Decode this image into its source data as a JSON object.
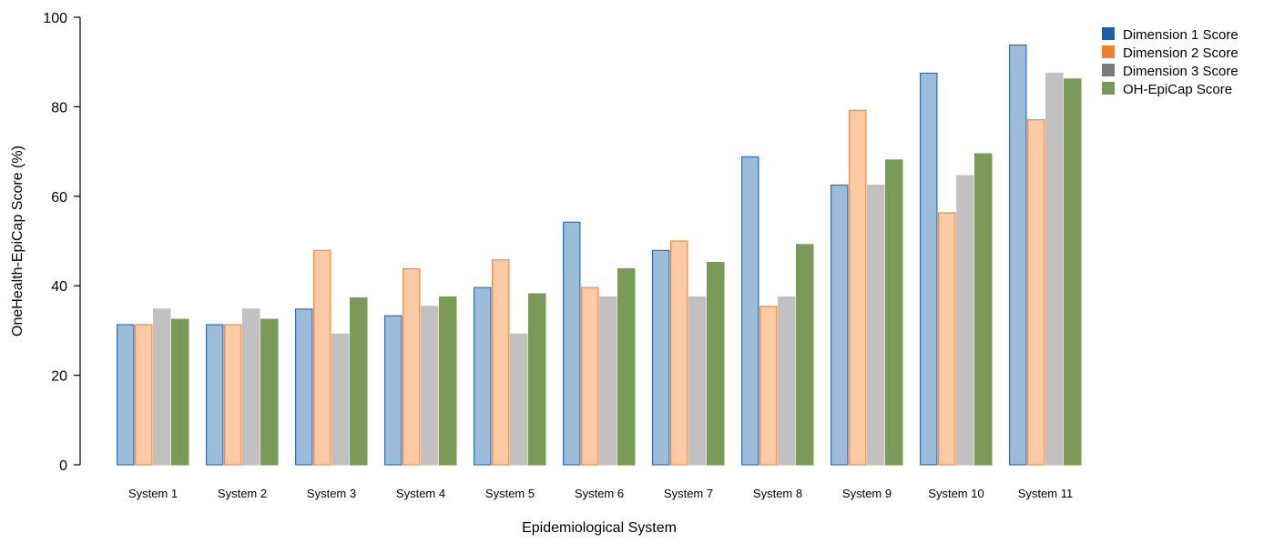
{
  "chart_data": {
    "type": "bar",
    "title": "",
    "xlabel": "Epidemiological System",
    "ylabel": "OneHealth-EpiCap Score (%)",
    "ylim": [
      0,
      100
    ],
    "yticks": [
      0,
      20,
      40,
      60,
      80,
      100
    ],
    "grid": false,
    "legend_position": "top-right",
    "categories": [
      "System 1",
      "System 2",
      "System 3",
      "System 4",
      "System 5",
      "System 6",
      "System 7",
      "System 8",
      "System 9",
      "System 10",
      "System 11"
    ],
    "series": [
      {
        "name": "Dimension 1 Score",
        "legend_color": "#1f5fa8",
        "fill": "#9dbcd8",
        "stroke": "#2a6fb8",
        "values": [
          31.3,
          31.3,
          34.8,
          33.3,
          39.6,
          54.2,
          47.9,
          68.8,
          62.5,
          87.5,
          93.8
        ]
      },
      {
        "name": "Dimension 2 Score",
        "legend_color": "#f07f30",
        "fill": "#fdcaa6",
        "stroke": "#f08a44",
        "values": [
          31.3,
          31.3,
          47.9,
          43.8,
          45.8,
          39.6,
          50.0,
          35.4,
          79.2,
          56.3,
          77.1
        ]
      },
      {
        "name": "Dimension 3 Score",
        "legend_color": "#7a7a7a",
        "fill": "#c1c1c1",
        "stroke": "#c1c1c1",
        "values": [
          34.8,
          34.8,
          29.2,
          35.4,
          29.2,
          37.5,
          37.5,
          37.5,
          62.5,
          64.6,
          87.5
        ]
      },
      {
        "name": "OH-EpiCap Score",
        "legend_color": "#789956",
        "fill": "#7a9a58",
        "stroke": "#7a9a58",
        "values": [
          32.5,
          32.5,
          37.3,
          37.5,
          38.2,
          43.8,
          45.2,
          49.2,
          68.1,
          69.5,
          86.2
        ]
      }
    ]
  }
}
